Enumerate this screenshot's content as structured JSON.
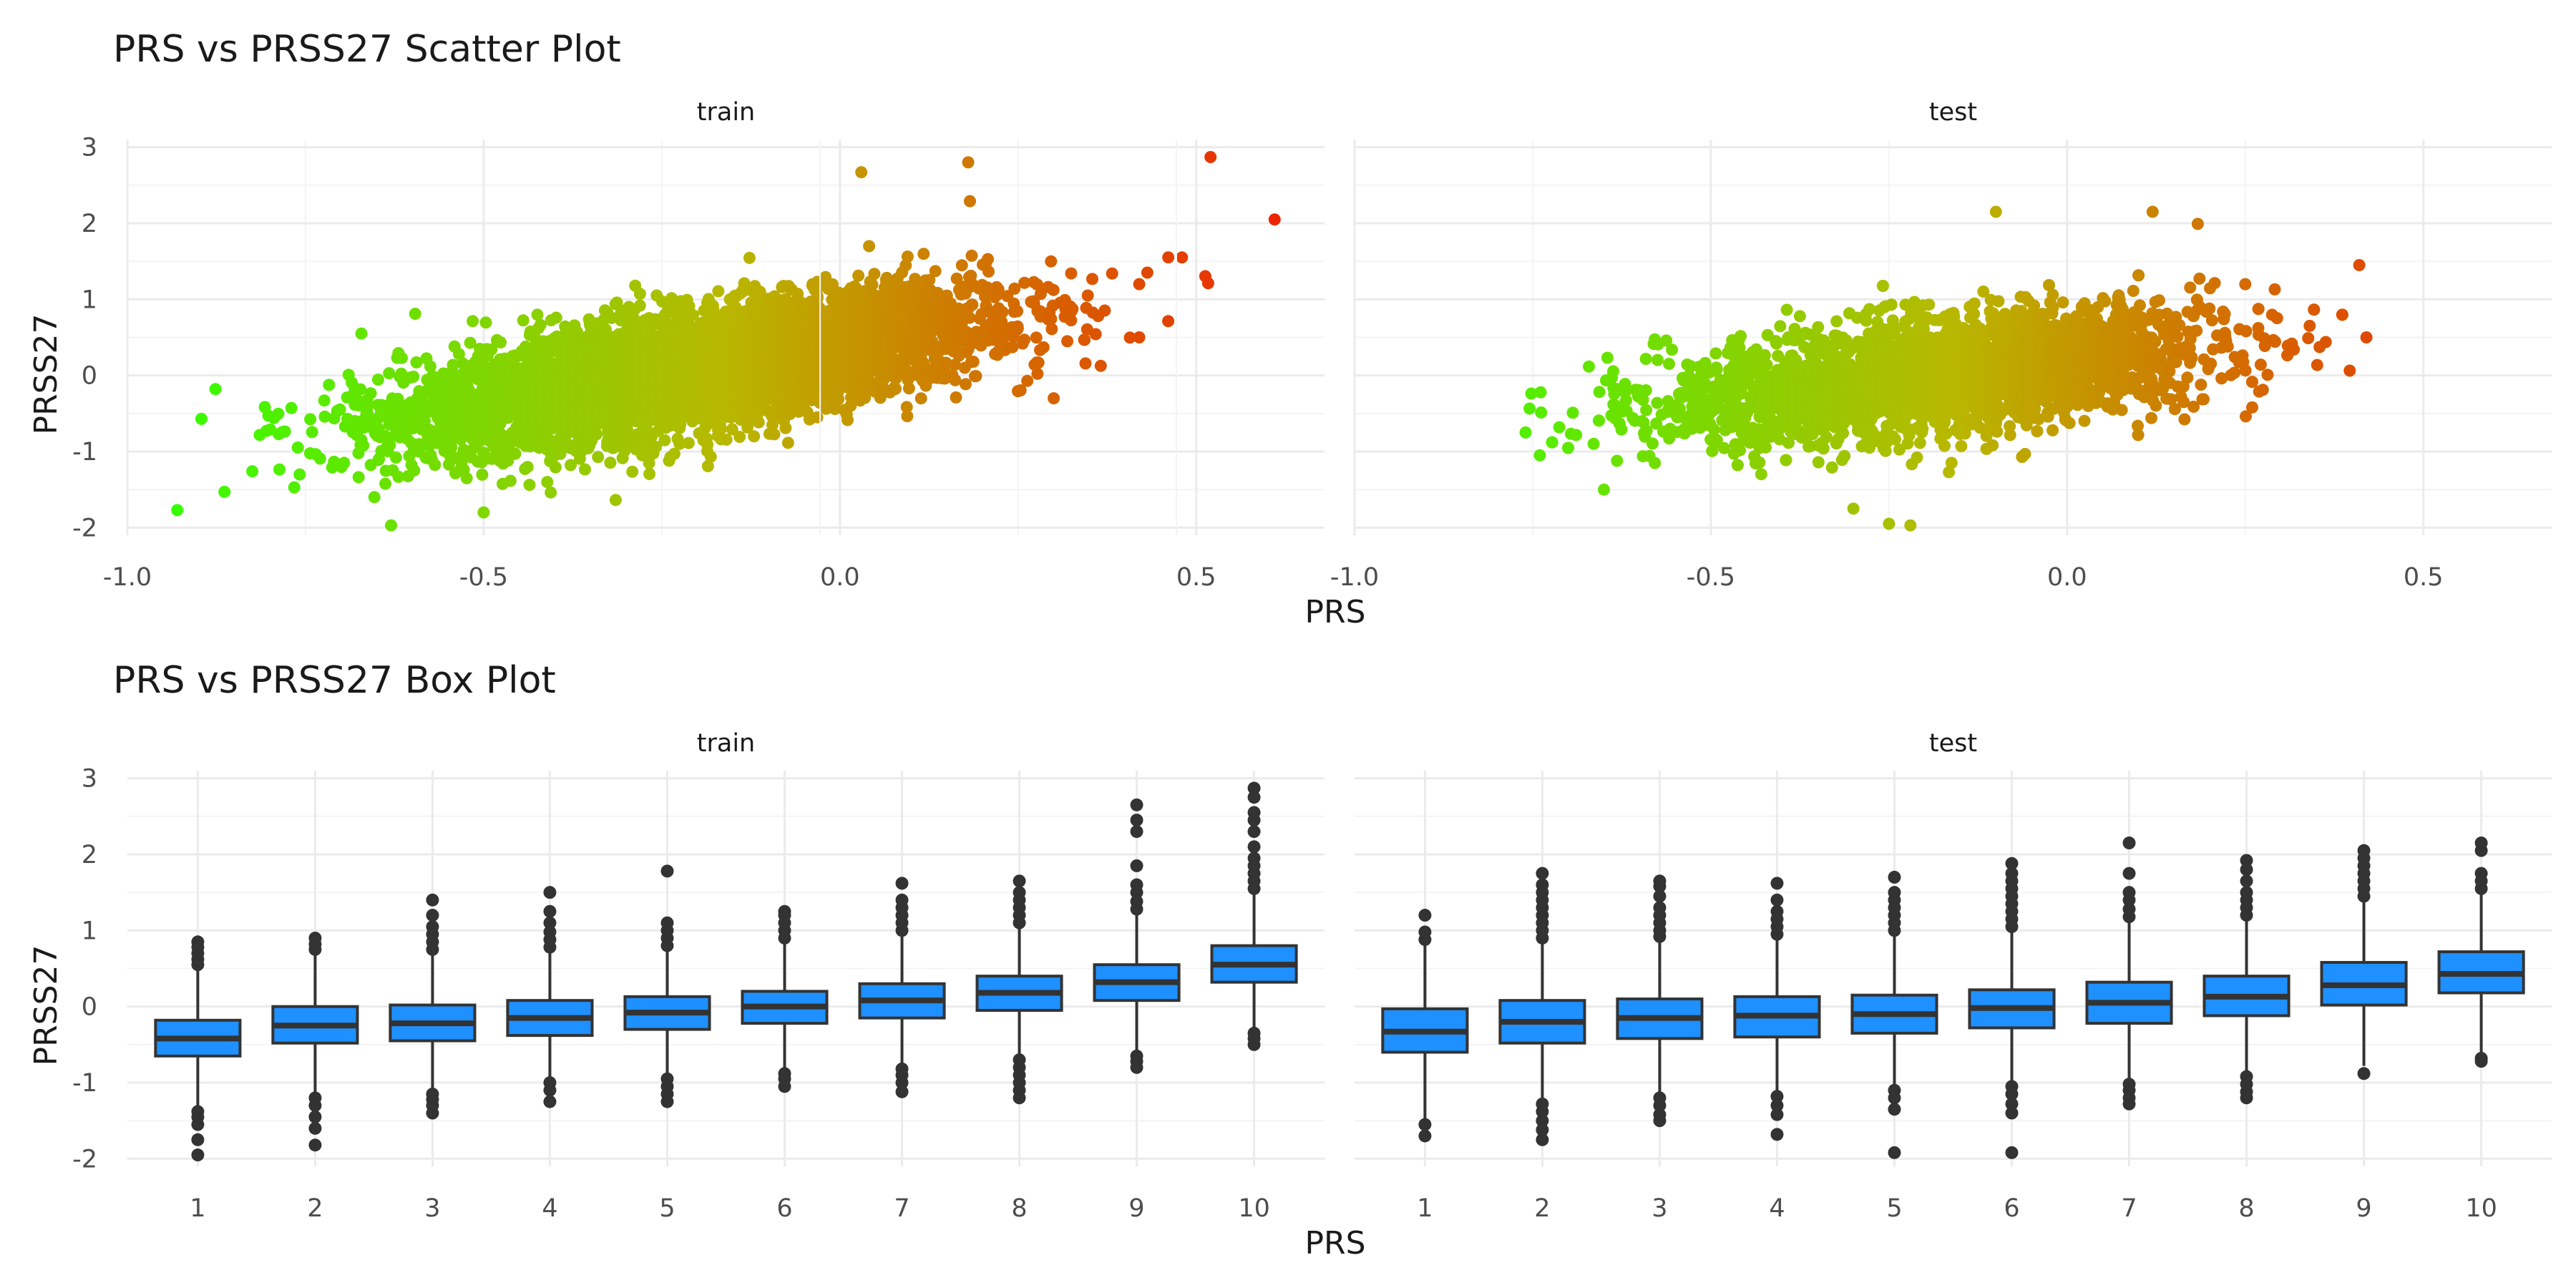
{
  "colors": {
    "low": "#33ff00",
    "mid": "#b8b800",
    "high": "#ee2200",
    "box_fill": "#1e90ff",
    "box_line": "#333333",
    "points": "#333333"
  },
  "chart_data": [
    {
      "type": "scatter",
      "title": "PRS vs PRSS27 Scatter Plot",
      "xlabel": "PRS",
      "ylabel": "PRSS27",
      "xlim": [
        -1.0,
        0.68
      ],
      "ylim": [
        -2.1,
        3.1
      ],
      "x_ticks": [
        "-1.0",
        "-0.5",
        "0.0",
        "0.5"
      ],
      "y_ticks": [
        "-2",
        "-1",
        "0",
        "1",
        "2",
        "3"
      ],
      "color_scale": "gradient by PRS (green = low, orange-red = high)",
      "grid": true,
      "panels": [
        {
          "facet": "train",
          "trend": {
            "slope": 1.55,
            "intercept": 0.38,
            "spread": 0.38
          },
          "x_range": [
            -0.93,
            0.63
          ],
          "notable_points": [
            [
              -0.93,
              -1.77
            ],
            [
              -0.63,
              -1.97
            ],
            [
              -0.5,
              -1.8
            ],
            [
              0.52,
              2.87
            ],
            [
              0.61,
              2.05
            ],
            [
              0.03,
              2.67
            ],
            [
              0.18,
              2.8
            ],
            [
              0.48,
              1.55
            ],
            [
              0.42,
              1.2
            ],
            [
              0.3,
              -0.3
            ],
            [
              0.42,
              0.5
            ]
          ]
        },
        {
          "facet": "test",
          "trend": {
            "slope": 1.0,
            "intercept": 0.18,
            "spread": 0.38
          },
          "x_range": [
            -0.76,
            0.42
          ],
          "notable_points": [
            [
              -0.76,
              -0.75
            ],
            [
              -0.74,
              -1.05
            ],
            [
              -0.22,
              -1.97
            ],
            [
              -0.25,
              -1.95
            ],
            [
              -0.3,
              -1.75
            ],
            [
              -0.1,
              2.15
            ],
            [
              0.12,
              2.15
            ],
            [
              0.41,
              1.45
            ],
            [
              0.42,
              0.5
            ],
            [
              -0.65,
              -1.5
            ],
            [
              0.25,
              1.2
            ]
          ]
        }
      ]
    },
    {
      "type": "box",
      "title": "PRS vs PRSS27 Box Plot",
      "xlabel": "PRS",
      "ylabel": "PRSS27",
      "categories": [
        "1",
        "2",
        "3",
        "4",
        "5",
        "6",
        "7",
        "8",
        "9",
        "10"
      ],
      "ylim": [
        -2.1,
        3.1
      ],
      "y_ticks": [
        "-2",
        "-1",
        "0",
        "1",
        "2",
        "3"
      ],
      "grid": true,
      "panels": [
        {
          "facet": "train",
          "boxes": [
            {
              "q1": -0.65,
              "median": -0.42,
              "q3": -0.18,
              "lower": -1.3,
              "upper": 0.5,
              "outliers": [
                0.55,
                0.62,
                0.7,
                0.78,
                0.85,
                -1.38,
                -1.45,
                -1.55,
                -1.75,
                -1.95
              ]
            },
            {
              "q1": -0.48,
              "median": -0.25,
              "q3": 0.0,
              "lower": -1.15,
              "upper": 0.7,
              "outliers": [
                0.75,
                0.82,
                0.9,
                -1.2,
                -1.3,
                -1.45,
                -1.6,
                -1.82
              ]
            },
            {
              "q1": -0.45,
              "median": -0.22,
              "q3": 0.02,
              "lower": -1.1,
              "upper": 0.7,
              "outliers": [
                0.75,
                0.85,
                0.95,
                1.05,
                1.2,
                1.4,
                -1.15,
                -1.22,
                -1.3,
                -1.4
              ]
            },
            {
              "q1": -0.38,
              "median": -0.15,
              "q3": 0.08,
              "lower": -0.95,
              "upper": 0.72,
              "outliers": [
                0.78,
                0.88,
                0.98,
                1.1,
                1.25,
                1.5,
                -1.0,
                -1.1,
                -1.25
              ]
            },
            {
              "q1": -0.3,
              "median": -0.08,
              "q3": 0.13,
              "lower": -0.9,
              "upper": 0.75,
              "outliers": [
                0.8,
                0.9,
                1.0,
                1.1,
                1.78,
                -0.95,
                -1.05,
                -1.15,
                -1.25
              ]
            },
            {
              "q1": -0.22,
              "median": 0.0,
              "q3": 0.2,
              "lower": -0.82,
              "upper": 0.82,
              "outliers": [
                0.9,
                1.0,
                1.1,
                1.2,
                1.25,
                -0.88,
                -0.95,
                -1.05
              ]
            },
            {
              "q1": -0.15,
              "median": 0.08,
              "q3": 0.3,
              "lower": -0.78,
              "upper": 0.95,
              "outliers": [
                1.0,
                1.1,
                1.2,
                1.3,
                1.4,
                1.62,
                -0.82,
                -0.9,
                -1.0,
                -1.12
              ]
            },
            {
              "q1": -0.05,
              "median": 0.18,
              "q3": 0.4,
              "lower": -0.65,
              "upper": 1.05,
              "outliers": [
                1.1,
                1.2,
                1.3,
                1.4,
                1.5,
                1.65,
                -0.7,
                -0.8,
                -0.9,
                -1.0,
                -1.1,
                -1.2
              ]
            },
            {
              "q1": 0.08,
              "median": 0.32,
              "q3": 0.55,
              "lower": -0.6,
              "upper": 1.2,
              "outliers": [
                1.28,
                1.38,
                1.5,
                1.6,
                1.85,
                2.3,
                2.45,
                2.65,
                -0.65,
                -0.72,
                -0.8
              ]
            },
            {
              "q1": 0.32,
              "median": 0.55,
              "q3": 0.8,
              "lower": -0.3,
              "upper": 1.5,
              "outliers": [
                1.55,
                1.65,
                1.75,
                1.85,
                1.95,
                2.1,
                2.3,
                2.45,
                2.55,
                2.75,
                2.87,
                -0.35,
                -0.42,
                -0.5
              ]
            }
          ]
        },
        {
          "facet": "test",
          "boxes": [
            {
              "q1": -0.6,
              "median": -0.33,
              "q3": -0.03,
              "lower": -1.48,
              "upper": 0.82,
              "outliers": [
                0.88,
                0.98,
                1.2,
                -1.55,
                -1.7
              ]
            },
            {
              "q1": -0.48,
              "median": -0.2,
              "q3": 0.08,
              "lower": -1.2,
              "upper": 0.85,
              "outliers": [
                0.9,
                1.0,
                1.1,
                1.2,
                1.3,
                1.4,
                1.5,
                1.6,
                1.75,
                -1.28,
                -1.38,
                -1.5,
                -1.62,
                -1.75
              ]
            },
            {
              "q1": -0.42,
              "median": -0.15,
              "q3": 0.1,
              "lower": -1.15,
              "upper": 0.88,
              "outliers": [
                0.92,
                1.0,
                1.1,
                1.2,
                1.3,
                1.45,
                1.58,
                1.65,
                -1.2,
                -1.3,
                -1.42,
                -1.5
              ]
            },
            {
              "q1": -0.4,
              "median": -0.12,
              "q3": 0.13,
              "lower": -1.1,
              "upper": 0.9,
              "outliers": [
                0.95,
                1.05,
                1.15,
                1.25,
                1.4,
                1.62,
                -1.18,
                -1.3,
                -1.42,
                -1.68
              ]
            },
            {
              "q1": -0.35,
              "median": -0.1,
              "q3": 0.15,
              "lower": -1.05,
              "upper": 0.95,
              "outliers": [
                1.0,
                1.1,
                1.2,
                1.3,
                1.4,
                1.5,
                1.7,
                -1.1,
                -1.2,
                -1.35,
                -1.92
              ]
            },
            {
              "q1": -0.28,
              "median": -0.02,
              "q3": 0.22,
              "lower": -0.98,
              "upper": 1.0,
              "outliers": [
                1.05,
                1.15,
                1.25,
                1.35,
                1.45,
                1.55,
                1.65,
                1.75,
                1.88,
                -1.05,
                -1.15,
                -1.28,
                -1.4,
                -1.92
              ]
            },
            {
              "q1": -0.22,
              "median": 0.05,
              "q3": 0.32,
              "lower": -0.95,
              "upper": 1.1,
              "outliers": [
                1.18,
                1.28,
                1.4,
                1.5,
                1.75,
                2.15,
                -1.02,
                -1.1,
                -1.2,
                -1.28
              ]
            },
            {
              "q1": -0.12,
              "median": 0.13,
              "q3": 0.4,
              "lower": -0.85,
              "upper": 1.15,
              "outliers": [
                1.2,
                1.3,
                1.4,
                1.5,
                1.65,
                1.8,
                1.92,
                -0.92,
                -1.02,
                -1.12,
                -1.2
              ]
            },
            {
              "q1": 0.02,
              "median": 0.28,
              "q3": 0.58,
              "lower": -0.78,
              "upper": 1.4,
              "outliers": [
                1.45,
                1.55,
                1.65,
                1.75,
                1.85,
                1.95,
                2.05,
                -0.88
              ]
            },
            {
              "q1": 0.18,
              "median": 0.43,
              "q3": 0.72,
              "lower": -0.62,
              "upper": 1.5,
              "outliers": [
                1.55,
                1.65,
                1.75,
                2.05,
                2.15,
                -0.68,
                -0.72
              ]
            }
          ]
        }
      ]
    }
  ]
}
